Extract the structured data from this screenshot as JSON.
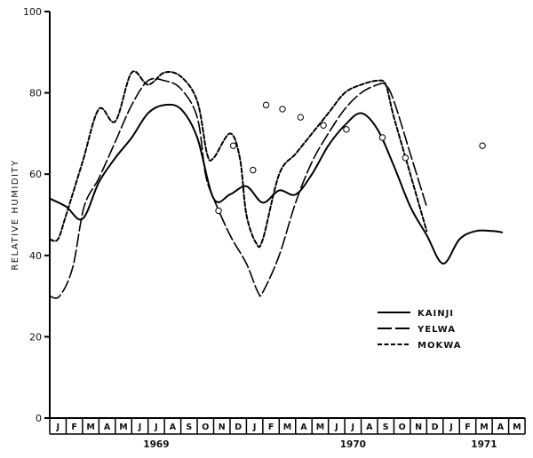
{
  "chart_data": {
    "type": "line",
    "title": "",
    "ylabel": "RELATIVE HUMIDITY",
    "xlabel": "",
    "ylim": [
      0,
      100
    ],
    "yticks": [
      "0",
      "20",
      "40",
      "60",
      "80",
      "100"
    ],
    "x_months": [
      "J",
      "F",
      "M",
      "A",
      "M",
      "J",
      "J",
      "A",
      "S",
      "O",
      "N",
      "D",
      "J",
      "F",
      "M",
      "A",
      "M",
      "J",
      "J",
      "A",
      "S",
      "O",
      "N",
      "D",
      "J",
      "F",
      "M",
      "A",
      "M"
    ],
    "x_years": [
      {
        "label": "1969",
        "at": 6.5
      },
      {
        "label": "1970",
        "at": 18.5
      },
      {
        "label": "1971",
        "at": 26.5
      }
    ],
    "legend": {
      "position": "right",
      "entries": [
        "KAINJI",
        "YELWA",
        "MOKWA"
      ]
    },
    "grid": false,
    "series": [
      {
        "name": "KAINJI",
        "style": "solid",
        "points": [
          [
            0,
            54
          ],
          [
            1,
            52
          ],
          [
            2,
            49
          ],
          [
            3,
            58
          ],
          [
            4,
            64
          ],
          [
            5,
            69
          ],
          [
            6,
            75
          ],
          [
            7,
            77
          ],
          [
            8,
            76
          ],
          [
            9,
            69
          ],
          [
            10,
            54
          ],
          [
            11,
            55
          ],
          [
            12,
            57
          ],
          [
            13,
            53
          ],
          [
            14,
            56
          ],
          [
            15,
            55
          ],
          [
            16,
            60
          ],
          [
            17,
            67
          ],
          [
            18,
            72
          ],
          [
            19,
            75
          ],
          [
            20,
            71
          ],
          [
            21,
            62
          ],
          [
            22,
            52
          ],
          [
            23,
            45
          ],
          [
            24,
            38
          ],
          [
            25,
            44
          ],
          [
            26,
            46
          ],
          [
            27,
            46
          ],
          [
            27.6,
            45.7
          ]
        ]
      },
      {
        "name": "YELWA",
        "style": "long-dash",
        "points": [
          [
            0,
            30
          ],
          [
            0.6,
            30
          ],
          [
            1.4,
            37
          ],
          [
            2.1,
            52
          ],
          [
            3,
            59
          ],
          [
            4,
            68
          ],
          [
            5,
            77
          ],
          [
            6,
            83
          ],
          [
            7,
            83
          ],
          [
            8,
            81
          ],
          [
            9,
            74
          ],
          [
            9.5,
            60
          ],
          [
            10,
            54
          ],
          [
            11,
            45
          ],
          [
            12,
            38
          ],
          [
            12.7,
            31
          ],
          [
            13,
            31
          ],
          [
            14,
            40
          ],
          [
            15,
            53
          ],
          [
            16,
            63
          ],
          [
            17,
            70
          ],
          [
            18,
            76
          ],
          [
            19,
            80
          ],
          [
            20,
            82
          ],
          [
            20.5,
            82
          ],
          [
            21,
            78
          ],
          [
            22,
            65
          ],
          [
            23,
            52
          ]
        ]
      },
      {
        "name": "MOKWA",
        "style": "short-dash",
        "points": [
          [
            0,
            44
          ],
          [
            0.5,
            44
          ],
          [
            1,
            50
          ],
          [
            2,
            63
          ],
          [
            3,
            76
          ],
          [
            4,
            73
          ],
          [
            5,
            85
          ],
          [
            6,
            82
          ],
          [
            7,
            85
          ],
          [
            8,
            84
          ],
          [
            9,
            78
          ],
          [
            9.6,
            65
          ],
          [
            10,
            64
          ],
          [
            11,
            70
          ],
          [
            11.6,
            64
          ],
          [
            12,
            50
          ],
          [
            12.6,
            43
          ],
          [
            13,
            44
          ],
          [
            14,
            60
          ],
          [
            15,
            65
          ],
          [
            16,
            70
          ],
          [
            17,
            75
          ],
          [
            18,
            80
          ],
          [
            19,
            82
          ],
          [
            20,
            83
          ],
          [
            20.5,
            82
          ],
          [
            21,
            74
          ],
          [
            22,
            60
          ],
          [
            23,
            46
          ]
        ]
      }
    ],
    "scatter_points": [
      [
        10.3,
        51
      ],
      [
        11.2,
        67
      ],
      [
        12.4,
        61
      ],
      [
        13.2,
        77
      ],
      [
        14.2,
        76
      ],
      [
        15.3,
        74
      ],
      [
        16.7,
        72
      ],
      [
        18.1,
        71
      ],
      [
        20.3,
        69
      ],
      [
        21.7,
        64
      ],
      [
        26.4,
        67
      ]
    ]
  }
}
